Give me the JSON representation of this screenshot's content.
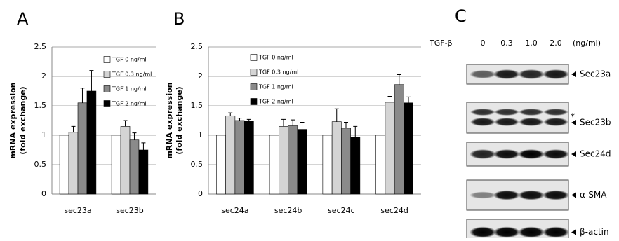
{
  "chart_data": [
    {
      "type": "bar",
      "panel": "A",
      "ylabel": [
        "mRNA expression",
        "(fold exchange)"
      ],
      "categories": [
        "sec23a",
        "sec23b"
      ],
      "series": [
        {
          "name": "TGF 0 ng/ml",
          "color": "#ffffff",
          "values": [
            1,
            1
          ],
          "errors": [
            null,
            null
          ]
        },
        {
          "name": "TGF 0.3 ng/ml",
          "color": "#d4d4d4",
          "values": [
            1.05,
            1.15
          ],
          "errors": [
            0.1,
            0.1
          ]
        },
        {
          "name": "TGF 1 ng/ml",
          "color": "#8a8a8a",
          "values": [
            1.55,
            0.92
          ],
          "errors": [
            0.25,
            0.12
          ]
        },
        {
          "name": "TGF 2 ng/ml",
          "color": "#000000",
          "values": [
            1.75,
            0.75
          ],
          "errors": [
            0.35,
            0.12
          ]
        }
      ],
      "ylim": [
        0,
        2.5
      ],
      "yticks": [
        0,
        0.5,
        1,
        1.5,
        2,
        2.5
      ],
      "grid": true
    },
    {
      "type": "bar",
      "panel": "B",
      "ylabel": [
        "mRNA expression",
        "(fold exchange)"
      ],
      "categories": [
        "sec24a",
        "sec24b",
        "sec24c",
        "sec24d"
      ],
      "series": [
        {
          "name": "TGF 0 ng/ml",
          "color": "#ffffff",
          "values": [
            1,
            1,
            1,
            1
          ],
          "errors": [
            null,
            null,
            null,
            null
          ]
        },
        {
          "name": "TGF 0.3 ng/ml",
          "color": "#d4d4d4",
          "values": [
            1.33,
            1.15,
            1.23,
            1.56
          ],
          "errors": [
            0.05,
            0.12,
            0.22,
            0.1
          ]
        },
        {
          "name": "TGF 1 ng/ml",
          "color": "#8a8a8a",
          "values": [
            1.25,
            1.16,
            1.12,
            1.86
          ],
          "errors": [
            0.04,
            0.1,
            0.1,
            0.17
          ]
        },
        {
          "name": "TGF 2 ng/ml",
          "color": "#000000",
          "values": [
            1.24,
            1.1,
            0.97,
            1.55
          ],
          "errors": [
            0.03,
            0.12,
            0.18,
            0.1
          ]
        }
      ],
      "ylim": [
        0,
        2.5
      ],
      "yticks": [
        0,
        0.5,
        1,
        1.5,
        2,
        2.5
      ],
      "grid": true
    }
  ],
  "blot": {
    "panel": "C",
    "treatment": "TGF-β",
    "doses": [
      "0",
      "0.3",
      "1.0",
      "2.0"
    ],
    "unit": "(ng/ml)",
    "bands": [
      "Sec23a",
      "Sec23b",
      "Sec24d",
      "α-SMA",
      "β-actin"
    ],
    "asterisk": "*"
  }
}
